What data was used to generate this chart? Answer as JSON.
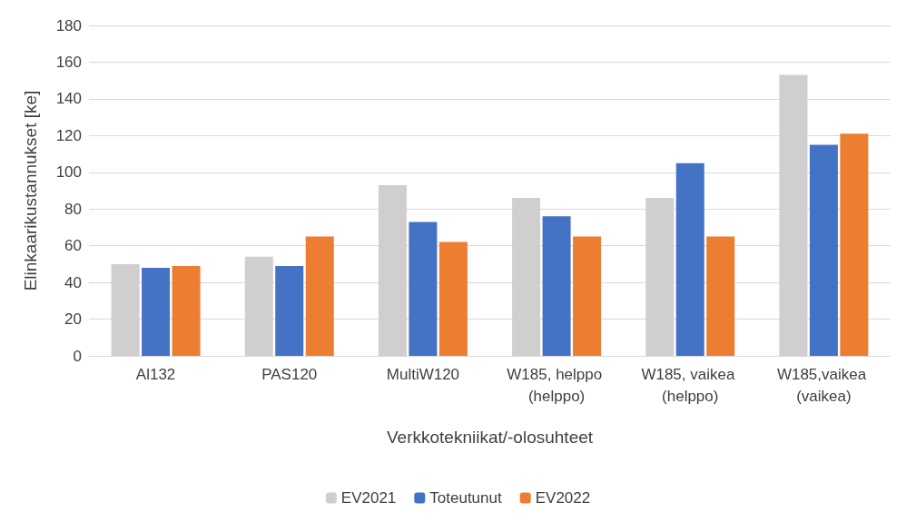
{
  "chart_data": {
    "type": "bar",
    "xlabel": "Verkkotekniikat/-olosuhteet",
    "ylabel": "Elinkaarikustannukset [ke]",
    "categories": [
      "Al132",
      "PAS120",
      "MultiW120",
      "W185, helppo (helppo)",
      "W185, vaikea (helppo)",
      "W185,vaikea (vaikea)"
    ],
    "series": [
      {
        "name": "EV2021",
        "color": "#d0cece",
        "values": [
          50,
          54,
          93,
          86,
          86,
          153
        ]
      },
      {
        "name": "Toteutunut",
        "color": "#4472c4",
        "values": [
          48,
          49,
          73,
          76,
          105,
          115
        ]
      },
      {
        "name": "EV2022",
        "color": "#ed7d31",
        "values": [
          49,
          65,
          62,
          65,
          65,
          121
        ]
      }
    ],
    "ylim": [
      0,
      180
    ],
    "yticks": [
      0,
      20,
      40,
      60,
      80,
      100,
      120,
      140,
      160,
      180
    ],
    "grid": "y",
    "legend": "bottom"
  }
}
